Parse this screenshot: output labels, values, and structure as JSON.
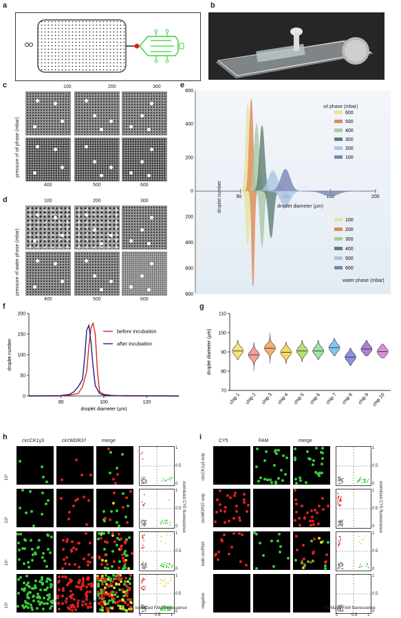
{
  "panels": {
    "a": "a",
    "b": "b",
    "c": "c",
    "d": "d",
    "e": "e",
    "f": "f",
    "g": "g",
    "h": "h",
    "i": "i"
  },
  "panel_c": {
    "top": [
      "100",
      "200",
      "300"
    ],
    "bottom": [
      "400",
      "500",
      "600"
    ],
    "ylabel": "pressure of oil phase (mbar)"
  },
  "panel_d": {
    "top": [
      "100",
      "200",
      "300"
    ],
    "bottom": [
      "400",
      "500",
      "600"
    ],
    "ylabel": "pressure of water phase (mbar)"
  },
  "panel_e": {
    "ylabel": "droplet number",
    "xlabel": "droplet diameter (µm)",
    "yticks_top": [
      "600",
      "400",
      "200",
      "0"
    ],
    "yticks_bottom": [
      "200",
      "400",
      "600",
      "800"
    ],
    "xticks": [
      "50",
      "100",
      "150",
      "200"
    ],
    "legend_top_title": "oil phase (mbar)",
    "legend_top": [
      "600",
      "500",
      "400",
      "300",
      "200",
      "100"
    ],
    "legend_bottom": [
      "100",
      "200",
      "300",
      "400",
      "500",
      "600"
    ],
    "legend_bottom_title": "water phase (mbar)",
    "colors": [
      "#e6e39a",
      "#e08a55",
      "#a9c9a7",
      "#5f7f74",
      "#a9c5e4",
      "#7b86b4"
    ]
  },
  "chart_data": [
    {
      "type": "line",
      "title": "",
      "xlabel": "droplet diameter (µm)",
      "ylabel": "droplet number",
      "xlim": [
        65,
        135
      ],
      "ylim": [
        0,
        200
      ],
      "xticks": [
        "80",
        "100",
        "120"
      ],
      "yticks": [
        "0",
        "50",
        "100",
        "150",
        "200"
      ],
      "series": [
        {
          "name": "before incubation",
          "color": "#d62728",
          "x": [
            65,
            80,
            84,
            88,
            90,
            92,
            93,
            94,
            95,
            96,
            97,
            98,
            100,
            104,
            110,
            135
          ],
          "y": [
            0,
            0,
            2,
            6,
            22,
            60,
            120,
            165,
            176,
            150,
            60,
            10,
            4,
            1,
            0,
            0
          ]
        },
        {
          "name": "after incubation",
          "color": "#1f1f7a",
          "x": [
            65,
            80,
            84,
            86,
            88,
            90,
            91,
            92,
            93,
            94,
            95,
            96,
            98,
            100,
            105,
            135
          ],
          "y": [
            0,
            1,
            4,
            10,
            22,
            40,
            90,
            160,
            171,
            130,
            70,
            25,
            6,
            2,
            1,
            0
          ]
        }
      ]
    },
    {
      "type": "violin",
      "title": "",
      "ylabel": "droplet diameter (µm)",
      "ylim": [
        70,
        110
      ],
      "yticks": [
        "70",
        "80",
        "90",
        "100",
        "110"
      ],
      "categories": [
        "chip 1",
        "chip 2",
        "chip 3",
        "chip 4",
        "chip 5",
        "chip 6",
        "chip 7",
        "chip 8",
        "chip 9",
        "chip 10"
      ],
      "medians": [
        90.5,
        88.5,
        92,
        89.8,
        90.5,
        90.5,
        92.2,
        87.3,
        91.5,
        90.2
      ],
      "min": [
        86,
        80,
        84,
        84,
        85,
        86,
        88,
        83,
        88,
        87
      ],
      "max": [
        96,
        95,
        100,
        95,
        96,
        96,
        97,
        92,
        96,
        94
      ],
      "colors": [
        "#f2e47a",
        "#f5a0a0",
        "#f6b070",
        "#f6d860",
        "#b8e070",
        "#a0e0a8",
        "#80c8f0",
        "#9090e0",
        "#b080d8",
        "#d890d8"
      ]
    }
  ],
  "panel_h": {
    "cols": [
      "circCK1γ3",
      "circWDR37",
      "merge"
    ],
    "rows": [
      "10³",
      "10²",
      "10⁴",
      "10⁵"
    ],
    "xlabel": "sensitivity (copies/reaction)",
    "scatter_xlabel": "normlized FAM fluorescence",
    "scatter_ylabel": "normlized CY5 fluorescence",
    "ticks": [
      "0",
      "0.5",
      "1"
    ]
  },
  "panel_i": {
    "cols": [
      "CY5",
      "FAM",
      "merge"
    ],
    "rows": [
      "circCK1γ3 only",
      "circWDR37 only",
      "both circRNA",
      "negative"
    ],
    "scatter_xlabel": "normlized FAM fluorescence",
    "scatter_ylabel": "normlized CY5 fluorescence",
    "ticks": [
      "0",
      "0.5",
      "1"
    ]
  }
}
